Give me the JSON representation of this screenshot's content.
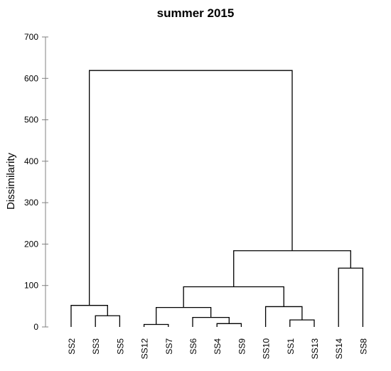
{
  "chart_data": {
    "type": "dendrogram",
    "title": "summer 2015",
    "ylabel": "Dissimilarity",
    "xlabel": "",
    "ylim": [
      0,
      700
    ],
    "yticks": [
      0,
      100,
      200,
      300,
      400,
      500,
      600,
      700
    ],
    "grid": false,
    "leaves": [
      "SS2",
      "SS3",
      "SS5",
      "SS12",
      "SS7",
      "SS6",
      "SS4",
      "SS9",
      "SS10",
      "SS1",
      "SS13",
      "SS14",
      "SS8"
    ],
    "merges": [
      {
        "id": "m1",
        "left": "SS4",
        "right": "SS9",
        "height": 8
      },
      {
        "id": "m2",
        "left": "SS12",
        "right": "SS7",
        "height": 6
      },
      {
        "id": "m3",
        "left": "SS1",
        "right": "SS13",
        "height": 17
      },
      {
        "id": "m4",
        "left": "SS6",
        "right": "m1",
        "height": 23
      },
      {
        "id": "m5",
        "left": "SS3",
        "right": "SS5",
        "height": 27
      },
      {
        "id": "m6",
        "left": "m2",
        "right": "m4",
        "height": 47
      },
      {
        "id": "m7",
        "left": "SS10",
        "right": "m3",
        "height": 49
      },
      {
        "id": "m8",
        "left": "SS2",
        "right": "m5",
        "height": 52
      },
      {
        "id": "m9",
        "left": "m6",
        "right": "m7",
        "height": 97
      },
      {
        "id": "m10",
        "left": "SS14",
        "right": "SS8",
        "height": 142
      },
      {
        "id": "m11",
        "left": "m9",
        "right": "m10",
        "height": 184
      },
      {
        "id": "m12",
        "left": "m8",
        "right": "m11",
        "height": 619
      }
    ]
  }
}
